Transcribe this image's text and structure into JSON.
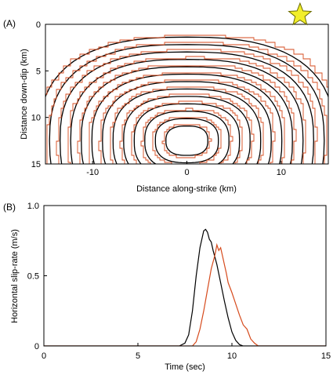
{
  "figure": {
    "panels": [
      "(A)",
      "(B)"
    ]
  },
  "colors": {
    "series_black": "#000000",
    "series_red": "#d64a1c",
    "star_fill": "#f2ee2a",
    "star_stroke": "#6b6b00"
  },
  "chart_data": [
    {
      "type": "contour",
      "panel": "(A)",
      "title": "",
      "xlabel": "Distance along-strike (km)",
      "ylabel": "Distance down-dip (km)",
      "xlim": [
        -15,
        15
      ],
      "ylim": [
        15,
        0
      ],
      "y_inverted": true,
      "xticks": [
        -10,
        0,
        10
      ],
      "yticks": [
        0,
        5,
        10,
        15
      ],
      "hypocenter_marker": {
        "shape": "star",
        "x": 12,
        "y": -1
      },
      "contour_center": {
        "x": 0,
        "y": 12.5
      },
      "series": [
        {
          "color": "black",
          "rupture_time_contours": [
            0,
            1,
            2,
            3,
            4,
            5,
            6,
            7,
            8,
            9,
            10,
            11,
            12,
            13
          ]
        },
        {
          "color": "red",
          "rupture_time_contours": [
            0,
            1,
            2,
            3,
            4,
            5,
            6,
            7,
            8,
            9,
            10,
            11,
            12,
            13
          ]
        }
      ]
    },
    {
      "type": "line",
      "panel": "(B)",
      "title": "",
      "xlabel": "Time (sec)",
      "ylabel": "Horizontal slip-rate (m/s)",
      "xlim": [
        0,
        15
      ],
      "ylim": [
        0,
        1.0
      ],
      "xticks": [
        0,
        5,
        10,
        15
      ],
      "yticks": [
        0,
        0.5,
        1.0
      ],
      "ytick_labels": [
        "0",
        "0.5",
        "1.0"
      ],
      "series": [
        {
          "color": "black",
          "x": [
            0,
            7.2,
            7.5,
            7.7,
            7.9,
            8.1,
            8.3,
            8.5,
            8.6,
            8.7,
            8.8,
            8.9,
            9.0,
            9.2,
            9.4,
            9.6,
            9.8,
            10.0,
            10.2,
            10.4,
            10.6,
            15
          ],
          "y": [
            0,
            0,
            0.02,
            0.08,
            0.25,
            0.5,
            0.7,
            0.82,
            0.83,
            0.81,
            0.76,
            0.74,
            0.68,
            0.58,
            0.45,
            0.32,
            0.2,
            0.1,
            0.04,
            0.01,
            0,
            0
          ]
        },
        {
          "color": "red",
          "x": [
            0,
            7.9,
            8.1,
            8.3,
            8.5,
            8.7,
            8.9,
            9.1,
            9.2,
            9.3,
            9.4,
            9.5,
            9.6,
            9.7,
            9.8,
            10.0,
            10.2,
            10.4,
            10.6,
            10.8,
            11.0,
            11.2,
            11.4,
            12.0,
            15
          ],
          "y": [
            0,
            0,
            0.03,
            0.12,
            0.25,
            0.4,
            0.55,
            0.65,
            0.72,
            0.68,
            0.7,
            0.64,
            0.58,
            0.52,
            0.45,
            0.38,
            0.3,
            0.22,
            0.15,
            0.12,
            0.05,
            0.02,
            0,
            0,
            0
          ]
        }
      ]
    }
  ]
}
